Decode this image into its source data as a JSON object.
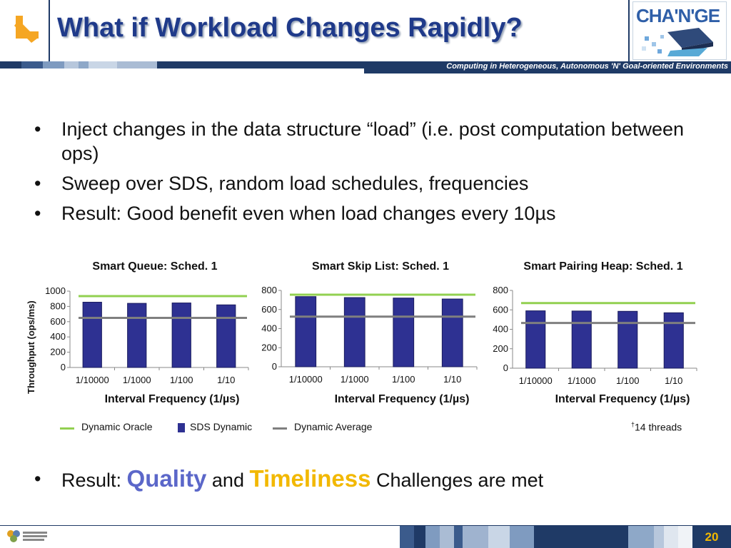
{
  "header": {
    "title": "What if Workload Changes Rapidly?",
    "logo_text": "CHA'N'GE",
    "tagline": "Computing in Heterogeneous, Autonomous 'N' Goal-oriented Environments",
    "arrow_icon": "arrow-down-left-icon"
  },
  "bullets": [
    "Inject changes in the data structure “load” (i.e. post computation between ops)",
    "Sweep over SDS, random load schedules, frequencies",
    "Result: Good benefit even when load changes every 10µs"
  ],
  "bullet_char": "•",
  "result": {
    "prefix": "Result: ",
    "quality": "Quality",
    "and": " and ",
    "timeliness": "Timeliness",
    "suffix": " Challenges are met"
  },
  "shared_ylabel": "Throughput (ops/ms)",
  "legend": {
    "oracle": "Dynamic Oracle",
    "sds": "SDS Dynamic",
    "average": "Dynamic Average"
  },
  "threads_note": {
    "dagger": "†",
    "text": "14 threads"
  },
  "colors": {
    "oracle": "#92d050",
    "sds": "#2e3192",
    "average": "#7f7f7f",
    "title": "#1f3a8a",
    "quality": "#5b67c9",
    "timeliness": "#f2b800",
    "navy": "#1f3a66"
  },
  "chart_data": [
    {
      "type": "bar",
      "title": "Smart Queue: Sched. 1",
      "xlabel": "Interval Frequency (1/µs)",
      "ylabel": "Throughput (ops/ms)",
      "categories": [
        "1/10000",
        "1/1000",
        "1/100",
        "1/10"
      ],
      "ylim": [
        0,
        1000
      ],
      "yticks": [
        0,
        200,
        400,
        600,
        800,
        1000
      ],
      "series": [
        {
          "name": "SDS Dynamic",
          "values": [
            855,
            840,
            845,
            820
          ]
        },
        {
          "name": "Dynamic Oracle",
          "values": [
            935,
            935,
            935,
            935
          ]
        },
        {
          "name": "Dynamic Average",
          "values": [
            650,
            650,
            650,
            650
          ]
        }
      ]
    },
    {
      "type": "bar",
      "title": "Smart Skip List: Sched.  1",
      "xlabel": "Interval Frequency (1/µs)",
      "ylabel": "",
      "categories": [
        "1/10000",
        "1/1000",
        "1/100",
        "1/10"
      ],
      "ylim": [
        0,
        800
      ],
      "yticks": [
        0,
        200,
        400,
        600,
        800
      ],
      "series": [
        {
          "name": "SDS Dynamic",
          "values": [
            735,
            725,
            720,
            710
          ]
        },
        {
          "name": "Dynamic Oracle",
          "values": [
            755,
            755,
            755,
            755
          ]
        },
        {
          "name": "Dynamic Average",
          "values": [
            525,
            525,
            525,
            525
          ]
        }
      ]
    },
    {
      "type": "bar",
      "title": "Smart Pairing Heap: Sched. 1",
      "xlabel": "Interval Frequency (1/µs)",
      "ylabel": "",
      "categories": [
        "1/10000",
        "1/1000",
        "1/100",
        "1/10"
      ],
      "ylim": [
        0,
        800
      ],
      "yticks": [
        0,
        200,
        400,
        600,
        800
      ],
      "series": [
        {
          "name": "SDS Dynamic",
          "values": [
            590,
            588,
            585,
            570
          ]
        },
        {
          "name": "Dynamic Oracle",
          "values": [
            670,
            670,
            670,
            670
          ]
        },
        {
          "name": "Dynamic Average",
          "values": [
            465,
            465,
            465,
            465
          ]
        }
      ]
    }
  ],
  "footer": {
    "page_number": "20",
    "logo_icon": "design-automation-logo-icon"
  }
}
